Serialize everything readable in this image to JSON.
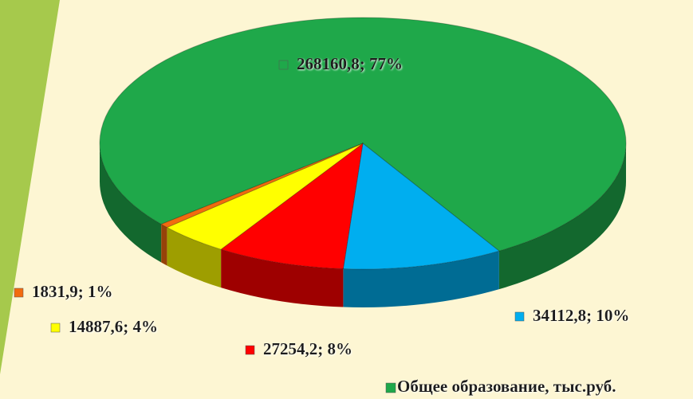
{
  "chart_data": {
    "type": "pie",
    "series": [
      {
        "name": "Общее образование, тыс.руб.",
        "values": [
          268160.8,
          34112.8,
          27254.2,
          14887.6,
          1831.9
        ],
        "value_labels": [
          "268160,8; 77%",
          "34112,8; 10%",
          "27254,2; 8%",
          "14887,6; 4%",
          "1831,9; 1%"
        ],
        "colors": [
          "#1fa84a",
          "#00aeef",
          "#ff0000",
          "#ffff00",
          "#f26b0f"
        ]
      }
    ]
  }
}
